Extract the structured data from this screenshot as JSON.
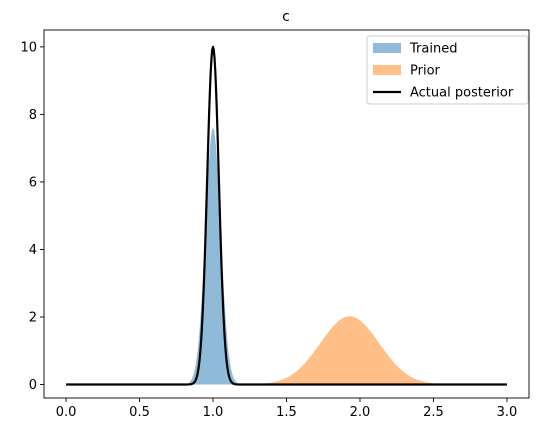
{
  "chart_data": {
    "type": "area",
    "title": "c",
    "xlabel": "",
    "ylabel": "",
    "xlim": [
      -0.15,
      3.15
    ],
    "ylim": [
      -0.4,
      10.5
    ],
    "xticks": [
      0.0,
      0.5,
      1.0,
      1.5,
      2.0,
      2.5,
      3.0
    ],
    "xtick_labels": [
      "0.0",
      "0.5",
      "1.0",
      "1.5",
      "2.0",
      "2.5",
      "3.0"
    ],
    "yticks": [
      0,
      2,
      4,
      6,
      8,
      10
    ],
    "ytick_labels": [
      "0",
      "2",
      "4",
      "6",
      "8",
      "10"
    ],
    "grid": false,
    "legend_position": "top-right",
    "series": [
      {
        "name": "Trained",
        "kind": "filled",
        "color": "#1f77b4",
        "alpha": 0.5,
        "model": {
          "mean": 1.0,
          "sd": 0.052,
          "peak": 7.6
        },
        "x_range": [
          0.0,
          3.0
        ]
      },
      {
        "name": "Prior",
        "kind": "filled",
        "color": "#ff7f0e",
        "alpha": 0.5,
        "model": {
          "mean": 1.93,
          "sd": 0.2,
          "peak": 2.02
        },
        "x_range": [
          0.0,
          3.0
        ]
      },
      {
        "name": "Actual posterior",
        "kind": "line",
        "color": "#000000",
        "model": {
          "mean": 1.0,
          "sd": 0.04,
          "peak": 10.0
        },
        "x_range": [
          0.0,
          3.0
        ]
      }
    ]
  }
}
